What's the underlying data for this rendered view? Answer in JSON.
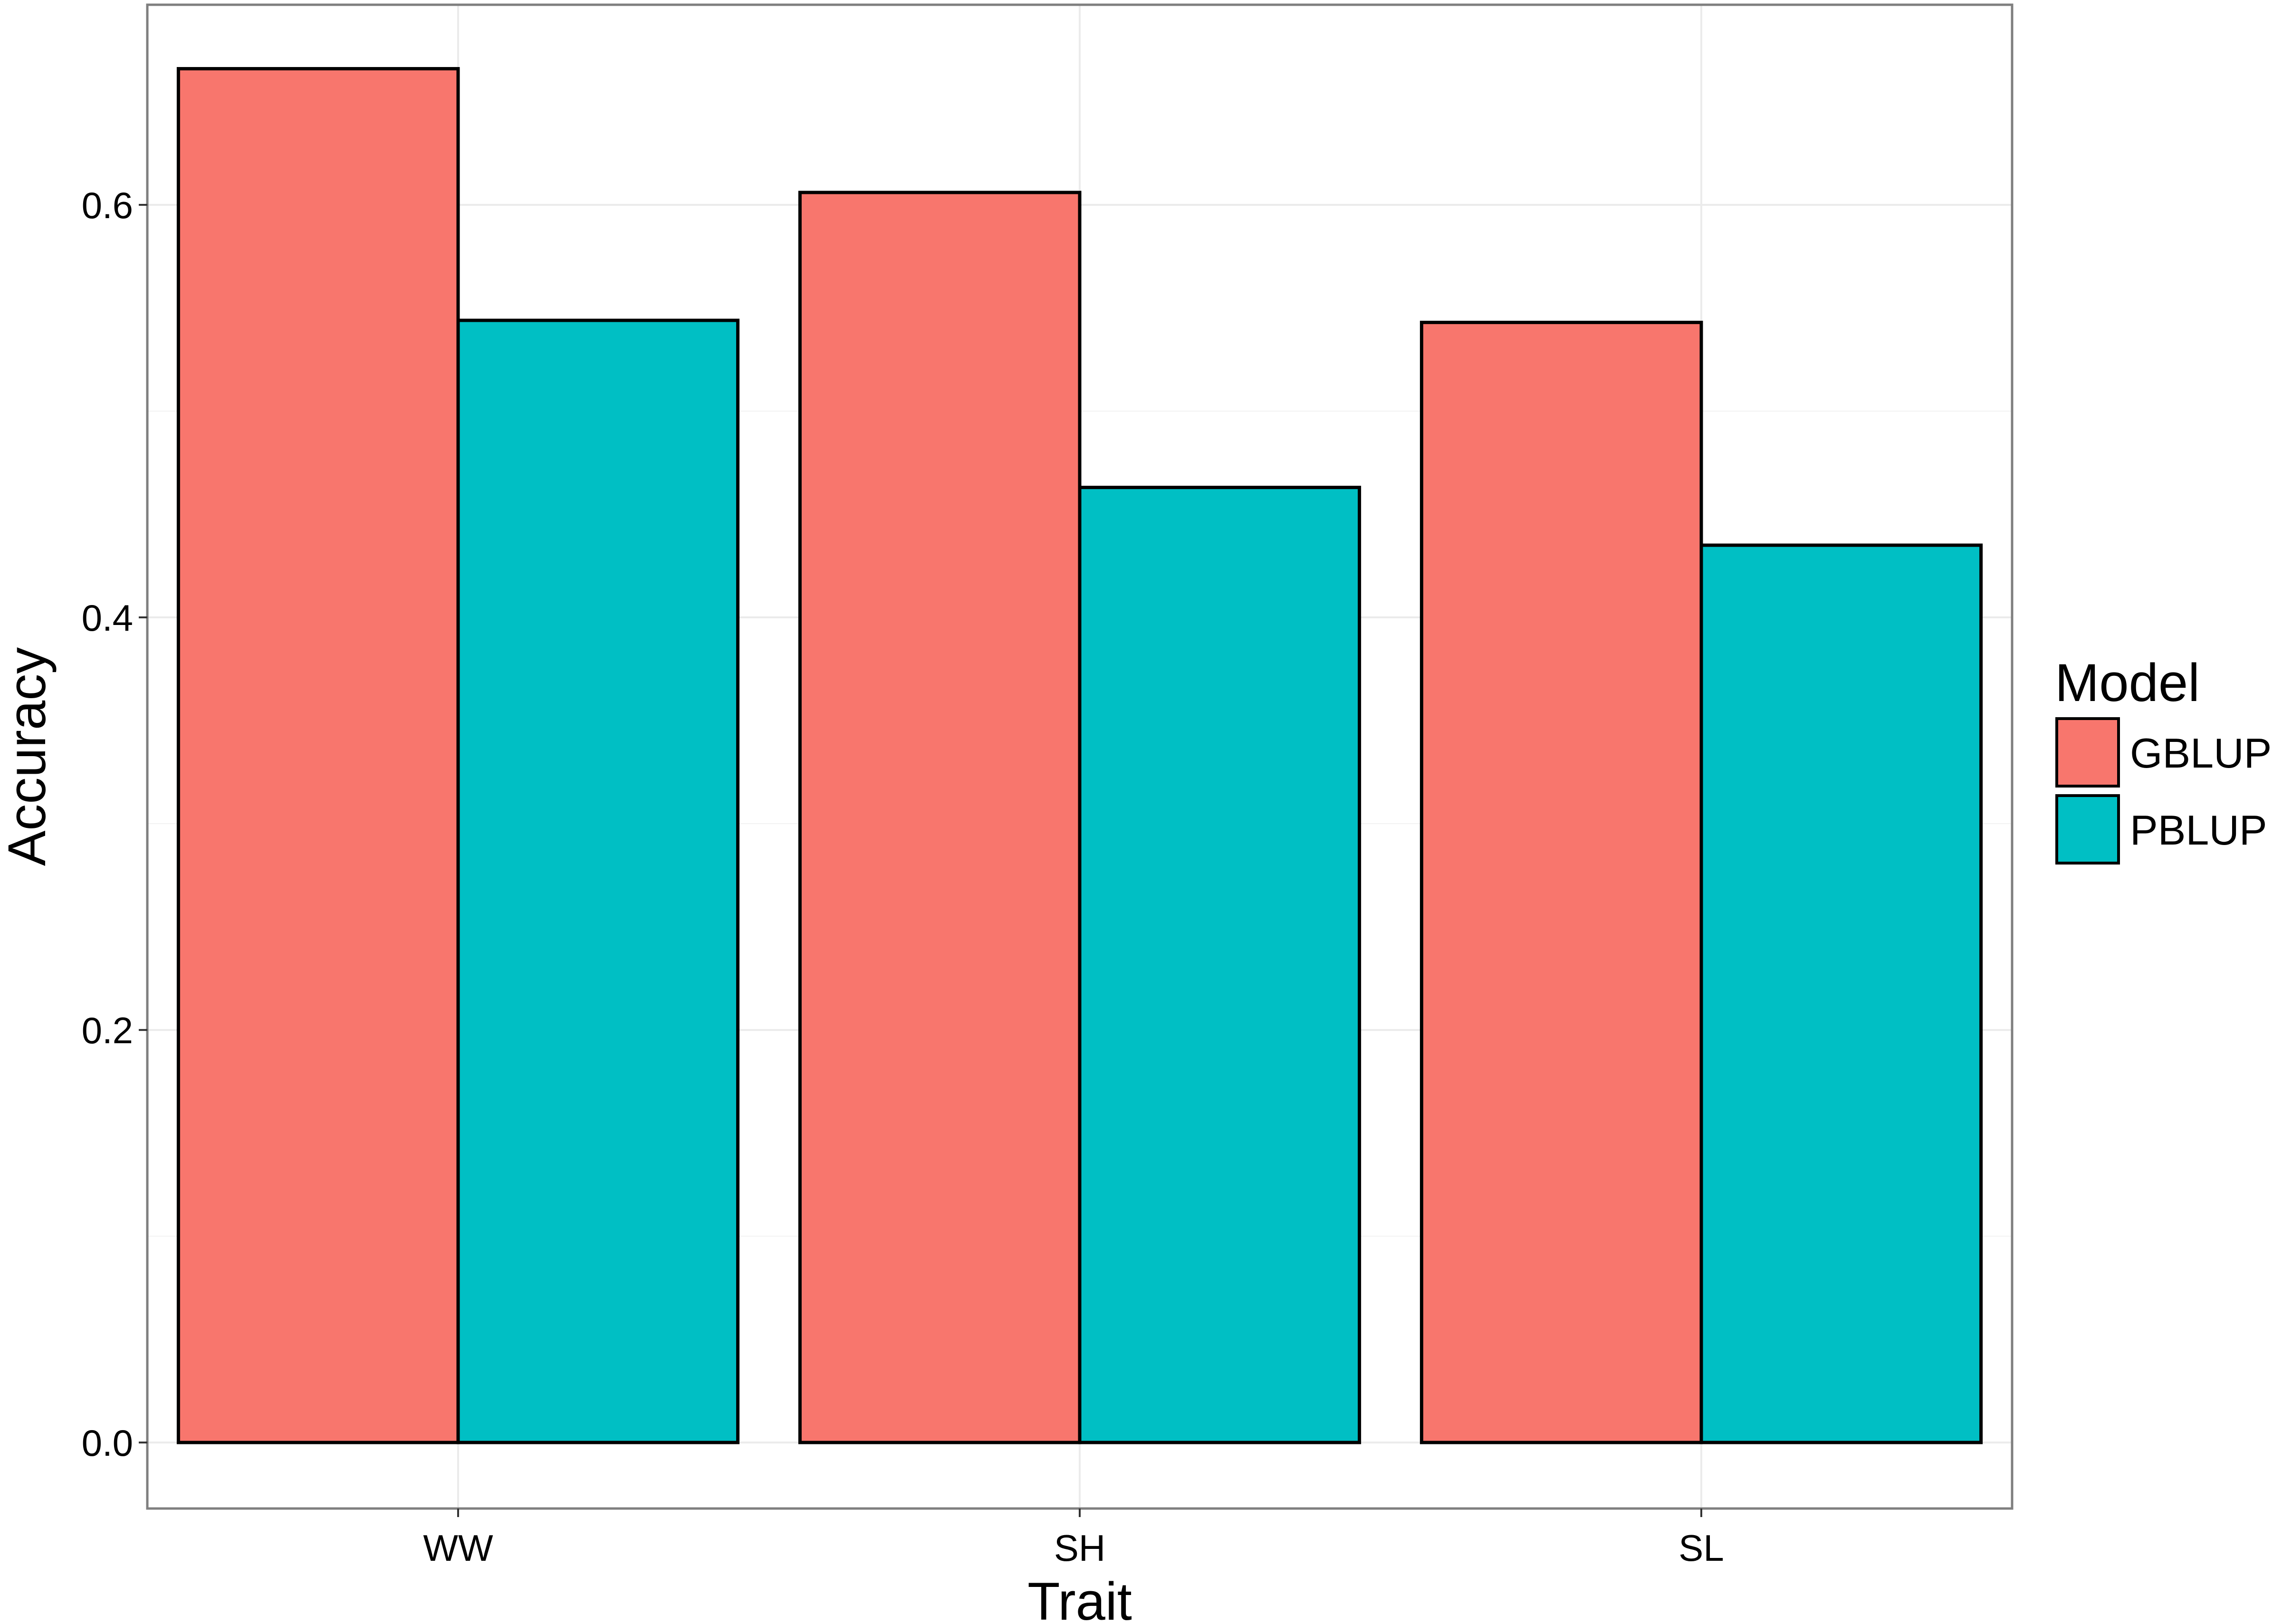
{
  "chart_data": {
    "type": "bar",
    "xlabel": "Trait",
    "ylabel": "Accuracy",
    "categories": [
      "WW",
      "SH",
      "SL"
    ],
    "series": [
      {
        "name": "GBLUP",
        "color": "#F8766D",
        "values": [
          0.666,
          0.606,
          0.543
        ]
      },
      {
        "name": "PBLUP",
        "color": "#00BFC4",
        "values": [
          0.544,
          0.463,
          0.435
        ]
      }
    ],
    "ylim": [
      -0.032,
      0.697
    ],
    "yticks": [
      0.0,
      0.2,
      0.4,
      0.6
    ],
    "ytick_labels": [
      "0.0",
      "0.2",
      "0.4",
      "0.6"
    ],
    "grid": true,
    "legend": {
      "title": "Model",
      "position": "right"
    }
  }
}
